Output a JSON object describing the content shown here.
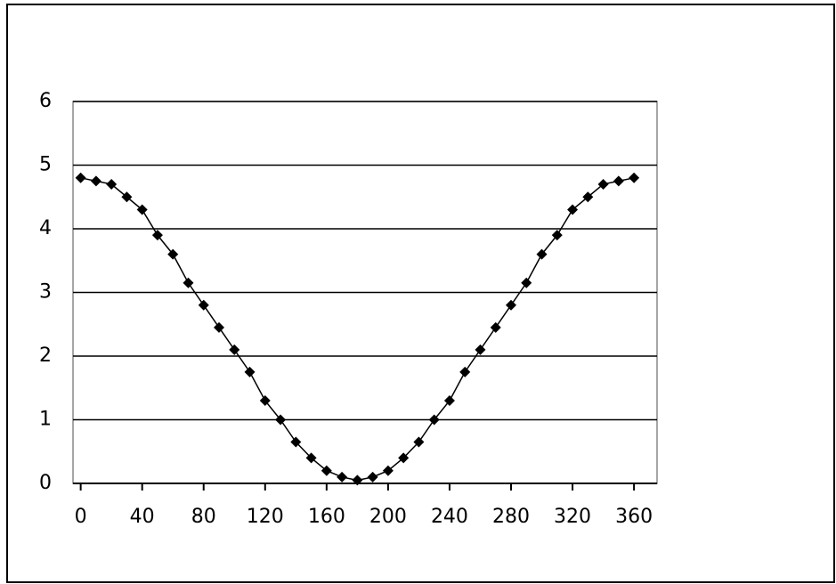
{
  "chart_data": {
    "type": "line",
    "x": [
      0,
      10,
      20,
      30,
      40,
      50,
      60,
      70,
      80,
      90,
      100,
      110,
      120,
      130,
      140,
      150,
      160,
      170,
      180,
      190,
      200,
      210,
      220,
      230,
      240,
      250,
      260,
      270,
      280,
      290,
      300,
      310,
      320,
      330,
      340,
      350,
      360
    ],
    "series": [
      {
        "color": "#000000",
        "values": [
          4.8,
          4.75,
          4.7,
          4.5,
          4.3,
          3.9,
          3.6,
          3.15,
          2.8,
          2.45,
          2.1,
          1.75,
          1.3,
          1.0,
          0.65,
          0.4,
          0.2,
          0.1,
          0.05,
          0.1,
          0.2,
          0.4,
          0.65,
          1.0,
          1.3,
          1.75,
          2.1,
          2.45,
          2.8,
          3.15,
          3.6,
          3.9,
          4.3,
          4.5,
          4.7,
          4.75,
          4.8
        ]
      }
    ],
    "xlim": [
      -5,
      375
    ],
    "xticks": [
      0,
      40,
      80,
      120,
      160,
      200,
      240,
      280,
      320,
      360
    ],
    "ylim": [
      0,
      6
    ],
    "yticks": [
      0,
      1,
      2,
      3,
      4,
      5,
      6
    ],
    "grid": true
  }
}
